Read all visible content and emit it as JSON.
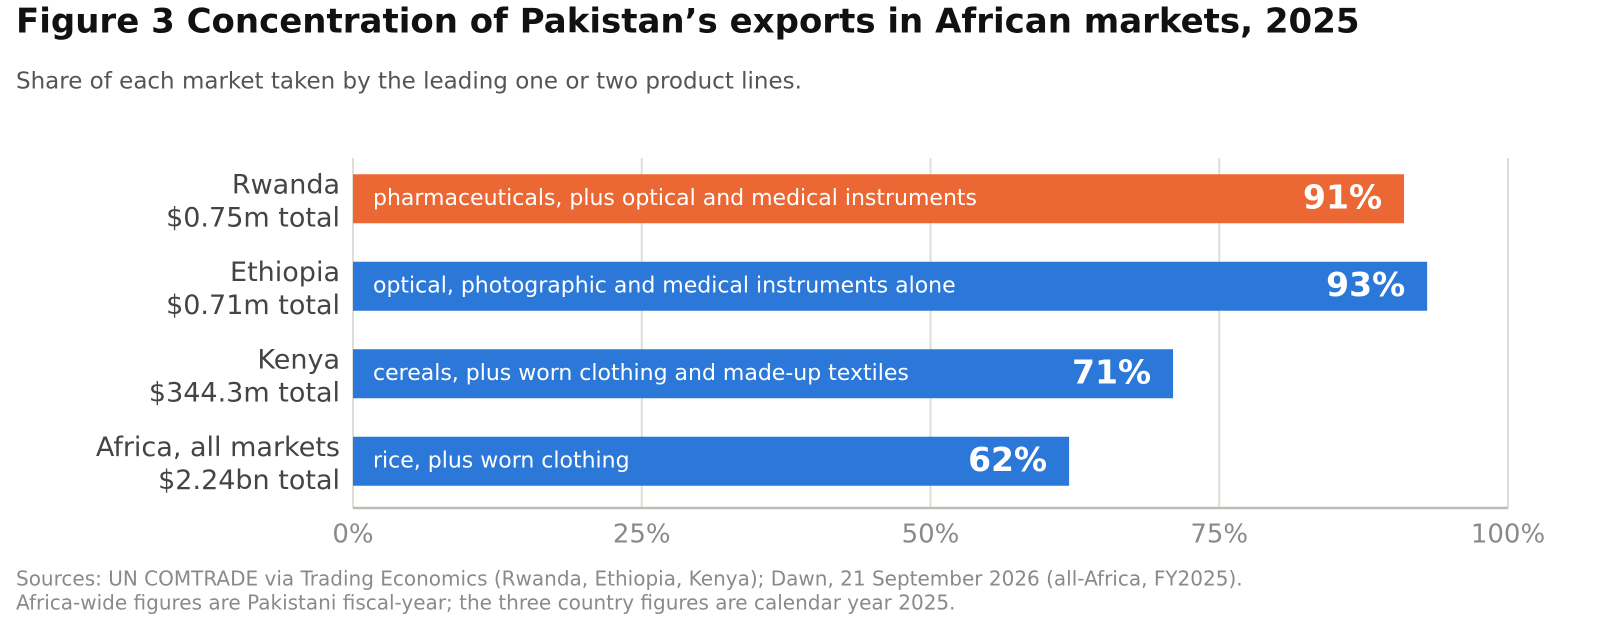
{
  "chart_data": {
    "type": "bar",
    "orientation": "horizontal",
    "title": "Figure 3  Concentration of Pakistan’s exports in African markets, 2025",
    "subtitle": "Share of each market taken by the leading one or two product lines.",
    "categories": [
      "Rwanda",
      "Ethiopia",
      "Kenya",
      "Africa, all markets"
    ],
    "category_totals": [
      "$0.75m total",
      "$0.71m total",
      "$344.3m total",
      "$2.24bn total"
    ],
    "values": [
      91,
      93,
      71,
      62
    ],
    "value_labels": [
      "91%",
      "93%",
      "71%",
      "62%"
    ],
    "bar_texts": [
      "pharmaceuticals, plus optical and medical instruments",
      "optical, photographic and medical instruments alone",
      "cereals, plus worn clothing and made-up textiles",
      "rice, plus worn clothing"
    ],
    "colors": [
      "#eb6835",
      "#2b78d8",
      "#2b78d8",
      "#2b78d8"
    ],
    "xlim": [
      0,
      100
    ],
    "xticks": [
      {
        "value": 0,
        "label": "0%"
      },
      {
        "value": 25,
        "label": "25%"
      },
      {
        "value": 50,
        "label": "50%"
      },
      {
        "value": 75,
        "label": "75%"
      },
      {
        "value": 100,
        "label": "100%"
      }
    ],
    "grid": true,
    "sources": [
      "Sources: UN COMTRADE via Trading Economics (Rwanda, Ethiopia, Kenya); Dawn, 21 September 2026 (all-Africa, FY2025).",
      "Africa-wide figures are Pakistani fiscal-year; the three country figures are calendar year 2025."
    ]
  }
}
